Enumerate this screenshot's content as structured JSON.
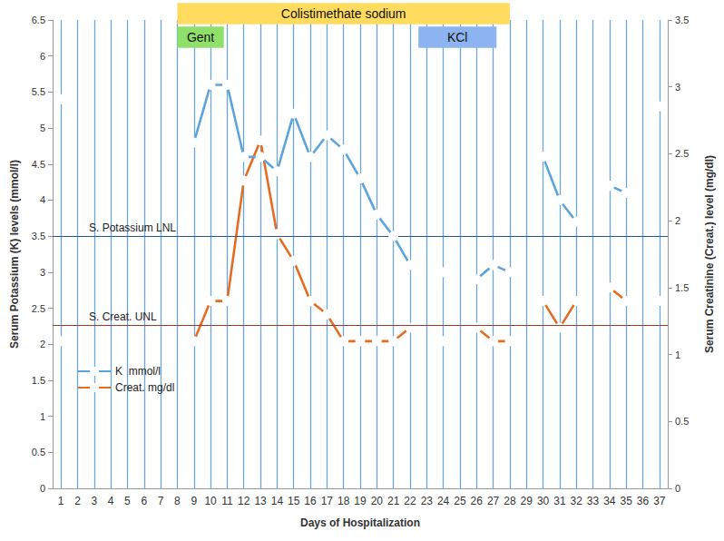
{
  "chart_data": {
    "type": "line",
    "xlabel": "Days of Hospitalization",
    "ylabel": "Serum Potassium (K) levels (mmol/l)",
    "y2label": "Serum Creatinine (Creat.) level (mg/dl)",
    "x": [
      1,
      2,
      3,
      4,
      5,
      6,
      7,
      8,
      9,
      10,
      11,
      12,
      13,
      14,
      15,
      16,
      17,
      18,
      19,
      20,
      21,
      22,
      23,
      24,
      25,
      26,
      27,
      28,
      29,
      30,
      31,
      32,
      33,
      34,
      35,
      36,
      37
    ],
    "xlim": [
      0.5,
      37.5
    ],
    "xticks": [
      1,
      2,
      3,
      4,
      5,
      6,
      7,
      8,
      9,
      10,
      11,
      12,
      13,
      14,
      15,
      16,
      17,
      18,
      19,
      20,
      21,
      22,
      23,
      24,
      25,
      26,
      27,
      28,
      29,
      30,
      31,
      32,
      33,
      34,
      35,
      36,
      37
    ],
    "ylim": [
      0,
      6.5
    ],
    "yticks": [
      0,
      0.5,
      1,
      1.5,
      2,
      2.5,
      3,
      3.5,
      4,
      4.5,
      5,
      5.5,
      6,
      6.5
    ],
    "y2lim": [
      0,
      3.5
    ],
    "y2ticks": [
      0,
      0.5,
      1,
      1.5,
      2,
      2.5,
      3,
      3.5
    ],
    "grid": true,
    "legend": "lower left",
    "series": [
      {
        "name": "K  mmol/l",
        "color": "#5ba4dc",
        "marker": "circle",
        "line_style": "solid",
        "values": [
          5.4,
          null,
          null,
          null,
          null,
          null,
          null,
          null,
          4.8,
          5.6,
          5.6,
          4.6,
          4.6,
          4.4,
          5.2,
          4.6,
          4.9,
          4.7,
          4.3,
          3.8,
          3.5,
          3.1,
          null,
          3.0,
          null,
          2.9,
          3.1,
          3.0,
          null,
          4.6,
          4.0,
          3.7,
          null,
          4.2,
          4.1,
          null,
          5.3
        ]
      },
      {
        "name": "Creat. mg/dl",
        "color": "#e46c23",
        "marker": "circle",
        "line_style": "solid",
        "axis": "y2",
        "values": [
          1.1,
          null,
          null,
          null,
          null,
          null,
          null,
          null,
          1.1,
          1.4,
          1.4,
          2.3,
          2.6,
          1.9,
          1.7,
          1.4,
          1.3,
          1.1,
          1.1,
          1.1,
          1.1,
          1.2,
          null,
          1.1,
          null,
          1.2,
          1.1,
          1.1,
          null,
          1.4,
          1.2,
          1.4,
          null,
          1.5,
          1.4,
          null,
          1.4
        ]
      }
    ],
    "reference_lines": [
      {
        "label": "S. Potassium LNL",
        "value": 3.5,
        "axis": "y",
        "color": "#2f5597"
      },
      {
        "label": "S. Creat. UNL",
        "value": 1.22,
        "axis": "y2",
        "color": "#9c3b26"
      }
    ],
    "treatments": [
      {
        "label": "Colistimethate sodium",
        "start": 8,
        "end": 28,
        "color": "#ffdc5e"
      },
      {
        "label": "Gent",
        "start": 8,
        "end": 10.8,
        "color": "#8fe06a"
      },
      {
        "label": "KCl",
        "start": 22.5,
        "end": 27.2,
        "color": "#8db4f0"
      }
    ]
  }
}
